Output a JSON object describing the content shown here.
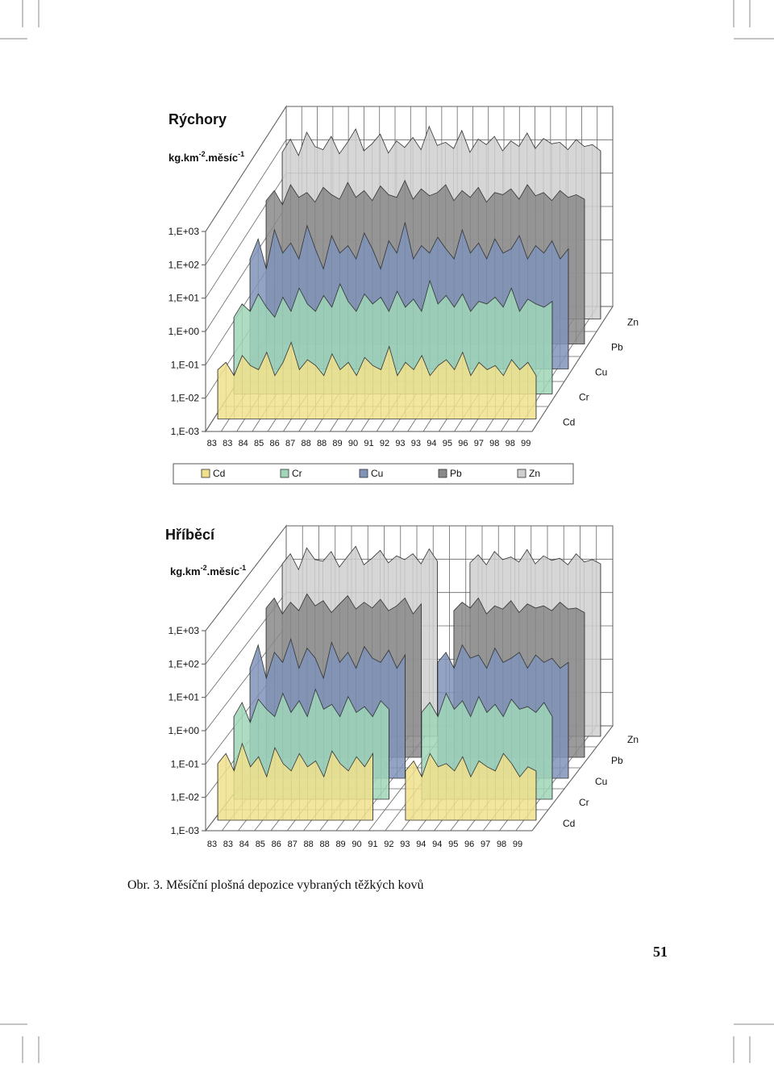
{
  "page": {
    "caption": "Obr. 3.  Měsíční plošná depozice vybraných těžkých kovů",
    "page_number": "51"
  },
  "colors": {
    "Cd": "#f0e08c",
    "Cr": "#9fd6b8",
    "Cu": "#7f93b8",
    "Pb": "#8a8a8a",
    "Zn": "#cfcfcf"
  },
  "chart_data": [
    {
      "type": "area",
      "chart": "3d-ribbon",
      "title": "Rýchory",
      "ylabel_base": "kg.km",
      "ylabel_exp1": "-2",
      "ylabel_mid": ".měsíc",
      "ylabel_exp2": "-1",
      "yscale": "log",
      "ylim": [
        0.001,
        1000
      ],
      "yticks": [
        "1,E-03",
        "1,E-02",
        "1,E-01",
        "1,E+00",
        "1,E+01",
        "1,E+02",
        "1,E+03"
      ],
      "xticks": [
        "83",
        "83",
        "84",
        "85",
        "86",
        "87",
        "88",
        "88",
        "89",
        "90",
        "91",
        "92",
        "93",
        "93",
        "94",
        "95",
        "96",
        "97",
        "98",
        "98",
        "99"
      ],
      "depth_labels": [
        "Cd",
        "Cr",
        "Cu",
        "Pb",
        "Zn"
      ],
      "legend": [
        "Cd",
        "Cr",
        "Cu",
        "Pb",
        "Zn"
      ],
      "legend_position": "bottom",
      "series": [
        {
          "name": "Cd",
          "values": [
            0.03,
            0.05,
            0.02,
            0.08,
            0.04,
            0.03,
            0.1,
            0.02,
            0.05,
            0.2,
            0.03,
            0.06,
            0.04,
            0.02,
            0.09,
            0.03,
            0.05,
            0.02,
            0.07,
            0.04,
            0.03,
            0.15,
            0.02,
            0.05,
            0.03,
            0.08,
            0.02,
            0.04,
            0.06,
            0.03,
            0.1,
            0.02,
            0.05,
            0.03,
            0.04,
            0.02,
            0.06,
            0.03,
            0.05,
            0.02
          ]
        },
        {
          "name": "Cr",
          "values": [
            0.2,
            0.5,
            0.3,
            1.0,
            0.4,
            0.2,
            0.8,
            0.3,
            1.5,
            0.5,
            0.3,
            0.9,
            0.4,
            2.0,
            0.6,
            0.3,
            1.0,
            0.5,
            0.8,
            0.3,
            1.2,
            0.4,
            0.7,
            0.3,
            2.5,
            0.5,
            0.9,
            0.4,
            1.0,
            0.3,
            0.6,
            0.5,
            0.8,
            0.4,
            1.5,
            0.3,
            0.7,
            0.5,
            0.4,
            0.6
          ]
        },
        {
          "name": "Cu",
          "values": [
            2,
            8,
            1,
            15,
            3,
            6,
            2,
            20,
            4,
            1,
            10,
            3,
            5,
            2,
            12,
            4,
            1,
            7,
            3,
            25,
            2,
            5,
            3,
            9,
            4,
            2,
            15,
            3,
            6,
            2,
            8,
            3,
            4,
            10,
            2,
            5,
            3,
            7,
            2,
            4
          ]
        },
        {
          "name": "Pb",
          "values": [
            20,
            40,
            15,
            60,
            25,
            35,
            18,
            50,
            30,
            22,
            70,
            25,
            40,
            20,
            55,
            30,
            25,
            80,
            22,
            45,
            28,
            35,
            60,
            20,
            40,
            25,
            50,
            18,
            35,
            30,
            45,
            22,
            60,
            28,
            35,
            20,
            40,
            25,
            30,
            22
          ]
        },
        {
          "name": "Zn",
          "values": [
            100,
            250,
            80,
            400,
            150,
            120,
            300,
            90,
            200,
            500,
            110,
            180,
            350,
            95,
            220,
            140,
            280,
            120,
            600,
            160,
            200,
            130,
            450,
            100,
            250,
            170,
            300,
            110,
            220,
            150,
            380,
            130,
            260,
            180,
            200,
            120,
            240,
            150,
            170,
            110
          ]
        }
      ]
    },
    {
      "type": "area",
      "chart": "3d-ribbon",
      "title": "Hříběcí",
      "ylabel_base": "kg.km",
      "ylabel_exp1": "-2",
      "ylabel_mid": ".měsíc",
      "ylabel_exp2": "-1",
      "yscale": "log",
      "ylim": [
        0.001,
        1000
      ],
      "yticks": [
        "1,E-03",
        "1,E-02",
        "1,E-01",
        "1,E+00",
        "1,E+01",
        "1,E+02",
        "1,E+03"
      ],
      "xticks": [
        "83",
        "83",
        "84",
        "85",
        "86",
        "87",
        "88",
        "88",
        "89",
        "90",
        "91",
        "92",
        "93",
        "94",
        "94",
        "95",
        "96",
        "97",
        "98",
        "99"
      ],
      "depth_labels": [
        "Cd",
        "Cr",
        "Cu",
        "Pb",
        "Zn"
      ],
      "series": [
        {
          "name": "Cd",
          "values": [
            0.05,
            0.1,
            0.03,
            0.2,
            0.04,
            0.08,
            0.02,
            0.15,
            0.05,
            0.03,
            0.1,
            0.04,
            0.06,
            0.02,
            0.12,
            0.05,
            0.03,
            0.08,
            0.04,
            0.1,
            null,
            null,
            null,
            0.03,
            0.06,
            0.02,
            0.1,
            0.04,
            0.05,
            0.03,
            0.08,
            0.02,
            0.06,
            0.04,
            0.03,
            0.1,
            0.05,
            0.02,
            0.04,
            0.03
          ]
        },
        {
          "name": "Cr",
          "values": [
            0.3,
            0.8,
            0.2,
            1.0,
            0.5,
            0.3,
            1.5,
            0.4,
            0.9,
            0.3,
            2.0,
            0.5,
            0.7,
            0.3,
            1.2,
            0.4,
            0.6,
            0.3,
            0.9,
            0.5,
            null,
            null,
            null,
            0.4,
            0.8,
            0.3,
            1.5,
            0.5,
            0.9,
            0.3,
            1.2,
            0.4,
            0.7,
            0.3,
            1.0,
            0.5,
            0.6,
            0.4,
            0.8,
            0.3
          ]
        },
        {
          "name": "Cu",
          "values": [
            2,
            10,
            1,
            6,
            3,
            15,
            2,
            8,
            4,
            1,
            12,
            3,
            6,
            2,
            9,
            4,
            3,
            7,
            2,
            5,
            null,
            null,
            null,
            3,
            6,
            2,
            10,
            4,
            5,
            2,
            8,
            3,
            4,
            6,
            2,
            5,
            3,
            4,
            2,
            3
          ]
        },
        {
          "name": "Pb",
          "values": [
            30,
            60,
            20,
            45,
            25,
            80,
            35,
            50,
            22,
            40,
            70,
            28,
            45,
            30,
            55,
            25,
            35,
            60,
            20,
            40,
            null,
            null,
            null,
            25,
            45,
            30,
            60,
            20,
            35,
            28,
            50,
            22,
            40,
            30,
            35,
            25,
            45,
            28,
            30,
            22
          ]
        },
        {
          "name": "Zn",
          "values": [
            150,
            300,
            100,
            450,
            200,
            180,
            350,
            120,
            250,
            500,
            140,
            220,
            380,
            160,
            260,
            200,
            300,
            150,
            420,
            180,
            null,
            null,
            null,
            160,
            280,
            140,
            350,
            200,
            240,
            170,
            400,
            150,
            260,
            190,
            220,
            140,
            300,
            170,
            200,
            150
          ]
        }
      ]
    }
  ]
}
